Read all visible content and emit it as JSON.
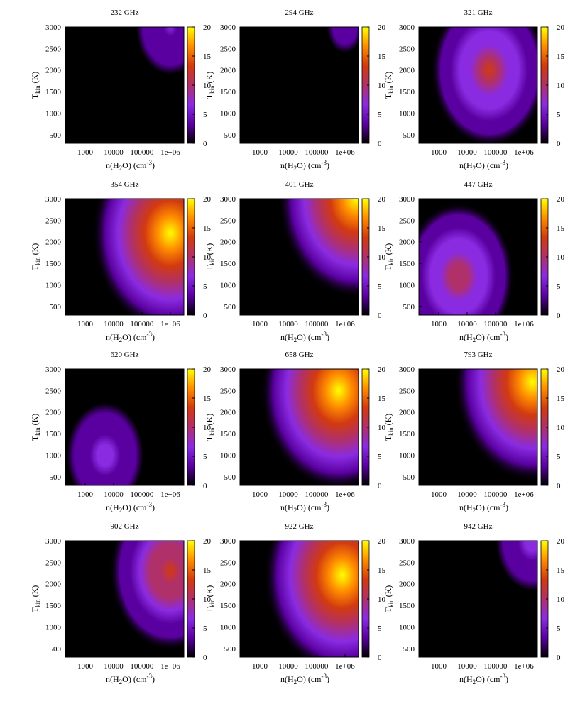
{
  "figure": {
    "colormap": [
      "#000000",
      "#5a00a0",
      "#8a2be2",
      "#b0306a",
      "#d23a10",
      "#ff8c00",
      "#ffff00"
    ],
    "colorbar_ticks": [
      "0",
      "5",
      "10",
      "15",
      "20"
    ],
    "x_tick_labels": [
      "1000",
      "10000",
      "100000",
      "1e+06"
    ],
    "y_tick_labels": [
      "500",
      "1000",
      "1500",
      "2000",
      "2500",
      "3000"
    ],
    "y_label_main": "T",
    "y_label_sub": "kin",
    "y_label_unit": " (K)",
    "x_label_pre": "n(H",
    "x_label_sub": "2",
    "x_label_mid": "O) (cm",
    "x_label_sup": "-3",
    "x_label_post": ")"
  },
  "chart_data": [
    {
      "type": "heatmap",
      "title": "232 GHz",
      "xlabel": "n(H2O) (cm-3)",
      "ylabel": "Tkin (K)",
      "x_scale": "log",
      "xlim": [
        200,
        3000000
      ],
      "ylim": [
        300,
        3000
      ],
      "colorbar_range": [
        0,
        20
      ],
      "peak_value": 5,
      "peak_location": {
        "n_H2O": 1000000,
        "Tkin": 3000
      }
    },
    {
      "type": "heatmap",
      "title": "294 GHz",
      "xlabel": "n(H2O) (cm-3)",
      "ylabel": "Tkin (K)",
      "x_scale": "log",
      "xlim": [
        200,
        3000000
      ],
      "ylim": [
        300,
        3000
      ],
      "colorbar_range": [
        0,
        20
      ],
      "peak_value": 3,
      "peak_location": {
        "n_H2O": 1000000,
        "Tkin": 3000
      }
    },
    {
      "type": "heatmap",
      "title": "321 GHz",
      "xlabel": "n(H2O) (cm-3)",
      "ylabel": "Tkin (K)",
      "x_scale": "log",
      "xlim": [
        200,
        3000000
      ],
      "ylim": [
        300,
        3000
      ],
      "colorbar_range": [
        0,
        20
      ],
      "peak_value": 12,
      "peak_location": {
        "n_H2O": 60000,
        "Tkin": 2000
      }
    },
    {
      "type": "heatmap",
      "title": "354 GHz",
      "xlabel": "n(H2O) (cm-3)",
      "ylabel": "Tkin (K)",
      "x_scale": "log",
      "xlim": [
        200,
        3000000
      ],
      "ylim": [
        300,
        3000
      ],
      "colorbar_range": [
        0,
        20
      ],
      "peak_value": 20,
      "peak_location": {
        "n_H2O": 1000000,
        "Tkin": 2200
      }
    },
    {
      "type": "heatmap",
      "title": "401 GHz",
      "xlabel": "n(H2O) (cm-3)",
      "ylabel": "Tkin (K)",
      "x_scale": "log",
      "xlim": [
        200,
        3000000
      ],
      "ylim": [
        300,
        3000
      ],
      "colorbar_range": [
        0,
        20
      ],
      "peak_value": 20,
      "peak_location": {
        "n_H2O": 2500000,
        "Tkin": 3000
      }
    },
    {
      "type": "heatmap",
      "title": "447 GHz",
      "xlabel": "n(H2O) (cm-3)",
      "ylabel": "Tkin (K)",
      "x_scale": "log",
      "xlim": [
        200,
        3000000
      ],
      "ylim": [
        300,
        3000
      ],
      "colorbar_range": [
        0,
        20
      ],
      "peak_value": 11,
      "peak_location": {
        "n_H2O": 5000,
        "Tkin": 1200
      }
    },
    {
      "type": "heatmap",
      "title": "620 GHz",
      "xlabel": "n(H2O) (cm-3)",
      "ylabel": "Tkin (K)",
      "x_scale": "log",
      "xlim": [
        200,
        3000000
      ],
      "ylim": [
        300,
        3000
      ],
      "colorbar_range": [
        0,
        20
      ],
      "peak_value": 7,
      "peak_location": {
        "n_H2O": 5000,
        "Tkin": 1000
      }
    },
    {
      "type": "heatmap",
      "title": "658 GHz",
      "xlabel": "n(H2O) (cm-3)",
      "ylabel": "Tkin (K)",
      "x_scale": "log",
      "xlim": [
        200,
        3000000
      ],
      "ylim": [
        300,
        3000
      ],
      "colorbar_range": [
        0,
        20
      ],
      "peak_value": 20,
      "peak_location": {
        "n_H2O": 600000,
        "Tkin": 2500
      }
    },
    {
      "type": "heatmap",
      "title": "793 GHz",
      "xlabel": "n(H2O) (cm-3)",
      "ylabel": "Tkin (K)",
      "x_scale": "log",
      "xlim": [
        200,
        3000000
      ],
      "ylim": [
        300,
        3000
      ],
      "colorbar_range": [
        0,
        20
      ],
      "peak_value": 20,
      "peak_location": {
        "n_H2O": 2000000,
        "Tkin": 2700
      }
    },
    {
      "type": "heatmap",
      "title": "902 GHz",
      "xlabel": "n(H2O) (cm-3)",
      "ylabel": "Tkin (K)",
      "x_scale": "log",
      "xlim": [
        200,
        3000000
      ],
      "ylim": [
        300,
        3000
      ],
      "colorbar_range": [
        0,
        20
      ],
      "peak_value": 13,
      "peak_location": {
        "n_H2O": 1000000,
        "Tkin": 2300
      }
    },
    {
      "type": "heatmap",
      "title": "922 GHz",
      "xlabel": "n(H2O) (cm-3)",
      "ylabel": "Tkin (K)",
      "x_scale": "log",
      "xlim": [
        200,
        3000000
      ],
      "ylim": [
        300,
        3000
      ],
      "colorbar_range": [
        0,
        20
      ],
      "peak_value": 20,
      "peak_location": {
        "n_H2O": 800000,
        "Tkin": 2200
      }
    },
    {
      "type": "heatmap",
      "title": "942 GHz",
      "xlabel": "n(H2O) (cm-3)",
      "ylabel": "Tkin (K)",
      "x_scale": "log",
      "xlim": [
        200,
        3000000
      ],
      "ylim": [
        300,
        3000
      ],
      "colorbar_range": [
        0,
        20
      ],
      "peak_value": 6,
      "peak_location": {
        "n_H2O": 2000000,
        "Tkin": 3000
      }
    }
  ]
}
